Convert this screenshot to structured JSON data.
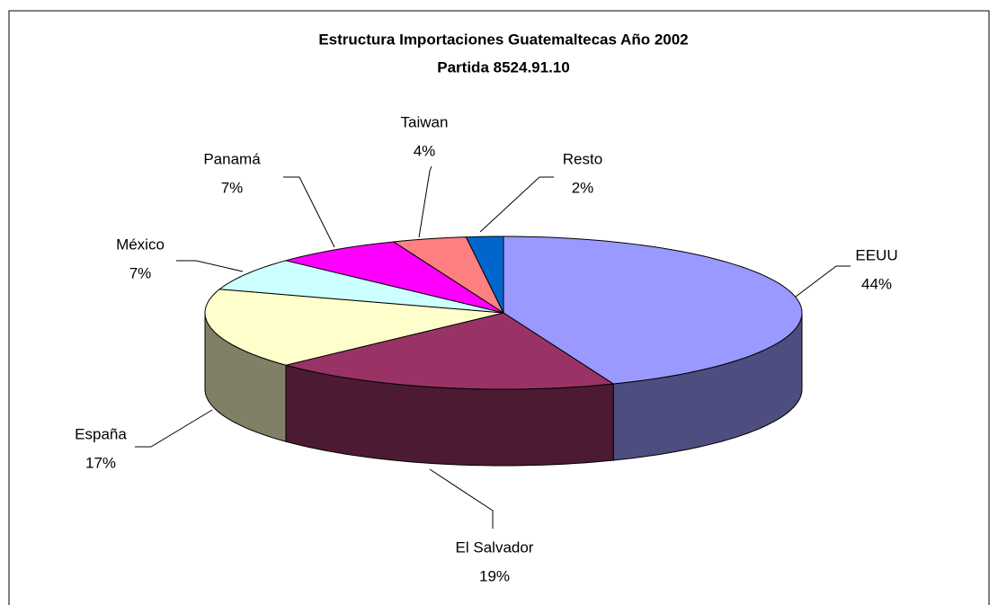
{
  "chart_data": {
    "type": "pie3d",
    "title": "Estructura Importaciones Guatemaltecas Año 2002",
    "subtitle": "Partida 8524.91.10",
    "categories": [
      "EEUU",
      "El Salvador",
      "España",
      "México",
      "Panamá",
      "Taiwan",
      "Resto"
    ],
    "values": [
      44,
      19,
      17,
      7,
      7,
      4,
      2
    ],
    "value_labels": [
      "44%",
      "19%",
      "17%",
      "7%",
      "7%",
      "4%",
      "2%"
    ],
    "colors": [
      "#9999ff",
      "#993366",
      "#ffffcc",
      "#ccffff",
      "#ff00ff",
      "#ff8080",
      "#0066cc"
    ]
  }
}
